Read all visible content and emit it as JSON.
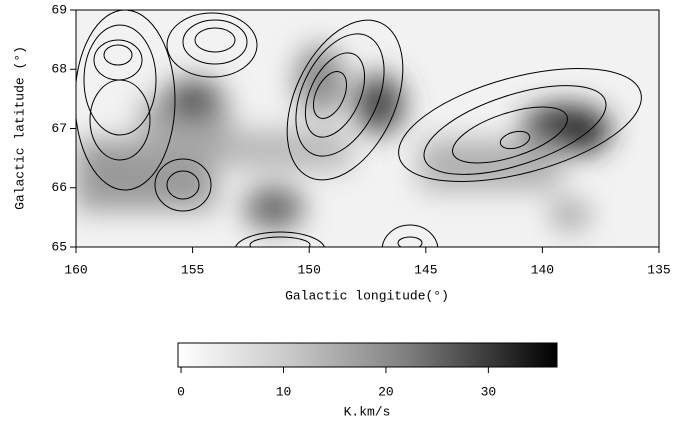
{
  "chart_data": {
    "type": "heatmap",
    "xlabel": "Galactic longitude(°)",
    "ylabel": "Galactic latitude (°)",
    "xlim": [
      160,
      135
    ],
    "xticks": [
      160,
      155,
      150,
      145,
      140,
      135
    ],
    "ylim": [
      65,
      69
    ],
    "yticks": [
      65,
      66,
      67,
      68,
      69
    ],
    "colorbar": {
      "label": "K.km/s",
      "lim": [
        -0.3,
        36.7
      ],
      "ticks": [
        0,
        10,
        20,
        30
      ]
    }
  }
}
